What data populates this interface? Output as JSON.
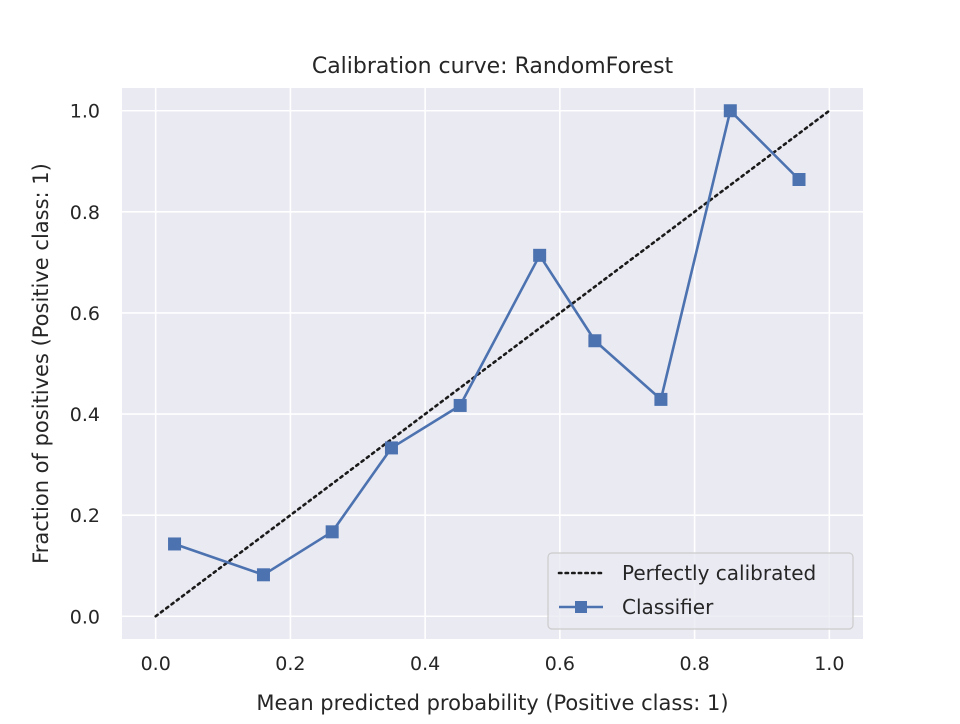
{
  "chart_data": {
    "type": "line",
    "title": "Calibration curve: RandomForest",
    "xlabel": "Mean predicted probability (Positive class: 1)",
    "ylabel": "Fraction of positives (Positive class: 1)",
    "xlim": [
      -0.05,
      1.05
    ],
    "ylim": [
      -0.045,
      1.045
    ],
    "xticks": [
      "0.0",
      "0.2",
      "0.4",
      "0.6",
      "0.8",
      "1.0"
    ],
    "yticks": [
      "0.0",
      "0.2",
      "0.4",
      "0.6",
      "0.8",
      "1.0"
    ],
    "grid": true,
    "legend_position": "lower-right",
    "series": [
      {
        "name": "Perfectly calibrated",
        "style": "dotted",
        "color": "#1a1a1a",
        "x": [
          0.0,
          1.0
        ],
        "y": [
          0.0,
          1.0
        ]
      },
      {
        "name": "Classifier",
        "style": "solid",
        "marker": "square",
        "color": "#4c72b0",
        "x": [
          0.028,
          0.16,
          0.262,
          0.35,
          0.452,
          0.57,
          0.652,
          0.75,
          0.853,
          0.955
        ],
        "y": [
          0.143,
          0.082,
          0.167,
          0.333,
          0.417,
          0.714,
          0.545,
          0.429,
          1.0,
          0.864
        ]
      }
    ]
  },
  "colors": {
    "plot_background": "#eaeaf2",
    "grid": "#ffffff",
    "legend_background": "#eaeaf2",
    "legend_border": "#cccccc"
  }
}
